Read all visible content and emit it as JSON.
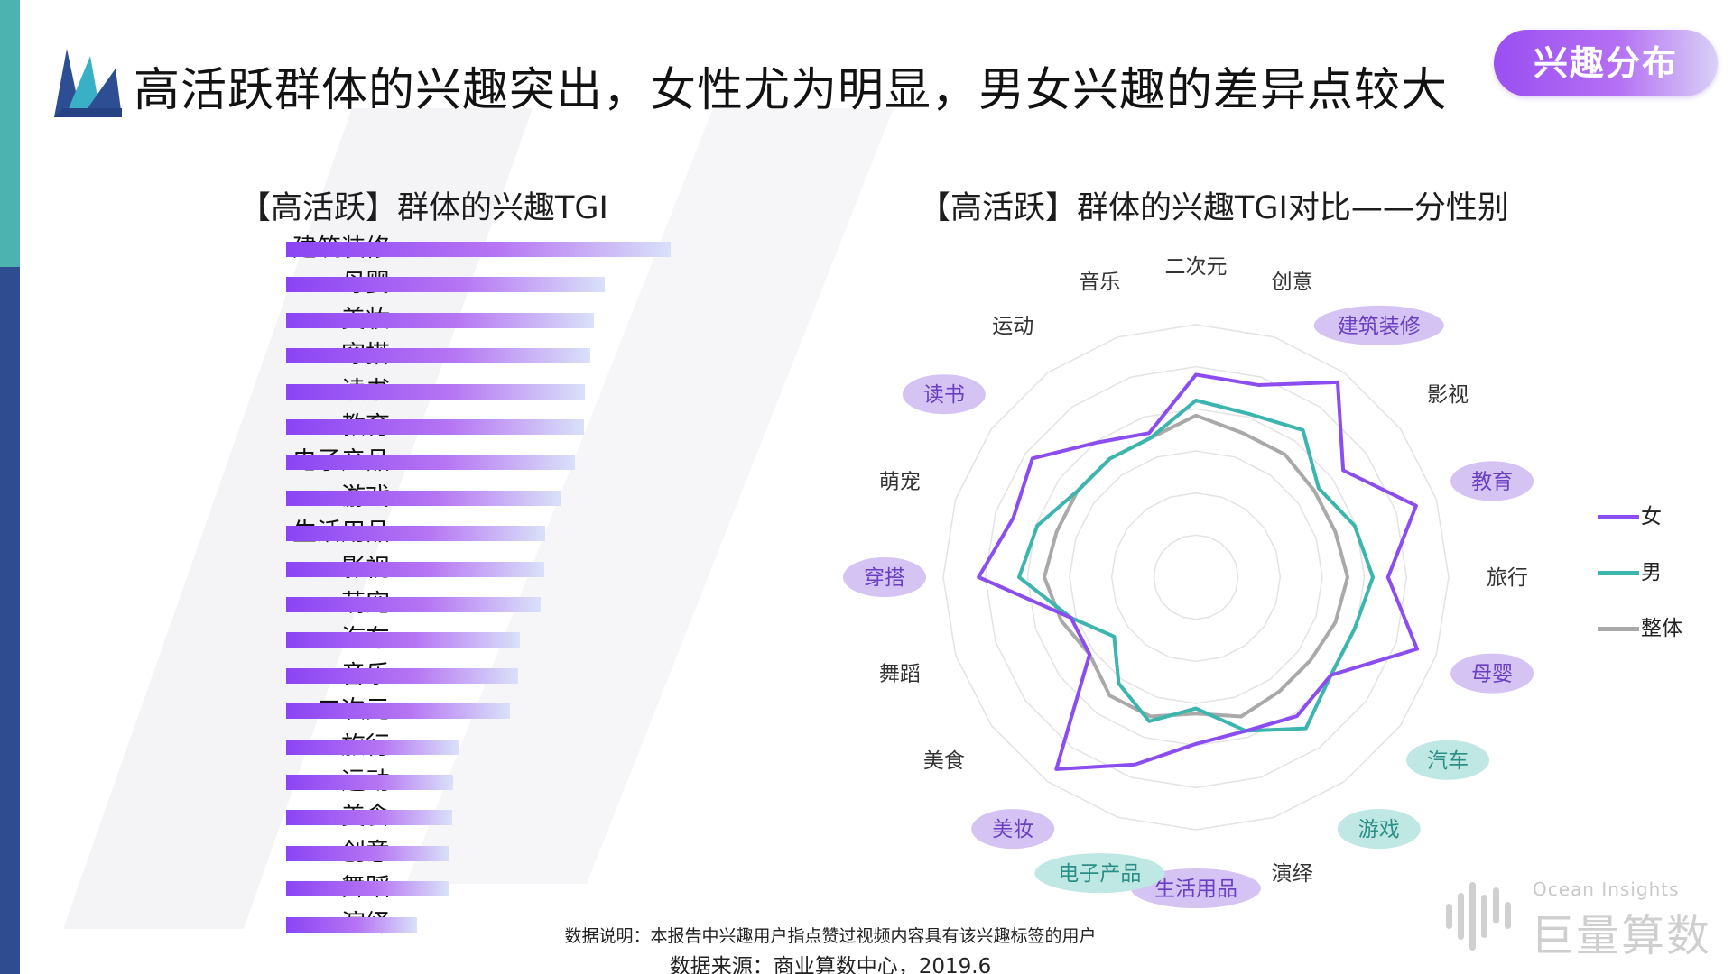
{
  "header": {
    "title": "高活跃群体的兴趣突出，女性尤为明显，男女兴趣的差异点较大",
    "tag": "兴趣分布"
  },
  "colors": {
    "female": "#8b4cf0",
    "male": "#3bb5ad",
    "overall": "#a9a9a9",
    "accent_purple": "#9a4ff2",
    "stripe_teal": "#4db3b0",
    "stripe_navy": "#2f4c91"
  },
  "chart_data": [
    {
      "type": "bar",
      "orientation": "horizontal",
      "title": "【高活跃】群体的兴趣TGI",
      "categories": [
        "建筑装修",
        "母婴",
        "美妆",
        "穿搭",
        "读书",
        "教育",
        "电子产品",
        "游戏",
        "生活用品",
        "影视",
        "萌宠",
        "汽车",
        "音乐",
        "二次元",
        "旅行",
        "运动",
        "美食",
        "创意",
        "舞蹈",
        "演绎"
      ],
      "values": [
        428,
        355,
        343,
        339,
        333,
        332,
        321,
        306,
        288,
        287,
        283,
        260,
        258,
        249,
        192,
        186,
        185,
        182,
        181,
        146
      ],
      "xlim": [
        0,
        430
      ],
      "grid": false
    },
    {
      "type": "radar",
      "title": "【高活跃】群体的兴趣TGI对比——分性别",
      "axes": [
        "二次元",
        "创意",
        "建筑装修",
        "影视",
        "教育",
        "旅行",
        "母婴",
        "汽车",
        "游戏",
        "演绎",
        "生活用品",
        "电子产品",
        "美妆",
        "美食",
        "舞蹈",
        "穿搭",
        "萌宠",
        "读书",
        "运动",
        "音乐"
      ],
      "highlighted_axes": {
        "female": [
          "建筑装修",
          "教育",
          "母婴",
          "生活用品",
          "美妆",
          "穿搭",
          "读书"
        ],
        "male": [
          "汽车",
          "游戏",
          "电子产品"
        ]
      },
      "rlim": [
        0,
        500
      ],
      "series": [
        {
          "name": "女",
          "values": [
            401,
            400,
            477,
            360,
            458,
            380,
            460,
            330,
            340,
            320,
            330,
            390,
            470,
            260,
            260,
            430,
            380,
            400,
            330,
            300
          ]
        },
        {
          "name": "男",
          "values": [
            350,
            340,
            360,
            300,
            330,
            350,
            330,
            330,
            370,
            320,
            260,
            300,
            260,
            200,
            260,
            350,
            330,
            290,
            290,
            290
          ]
        },
        {
          "name": "整体",
          "values": [
            320,
            300,
            300,
            290,
            290,
            300,
            290,
            280,
            280,
            290,
            270,
            290,
            290,
            260,
            280,
            300,
            290,
            290,
            290,
            290
          ]
        }
      ],
      "legend_position": "right",
      "grid": true
    }
  ],
  "footer": {
    "note": "数据说明：本报告中兴趣用户指点赞过视频内容具有该兴趣标签的用户",
    "source": "数据来源：商业算数中心，2019.6"
  },
  "brand": {
    "en": "Ocean Insights",
    "cn": "巨量算数"
  }
}
